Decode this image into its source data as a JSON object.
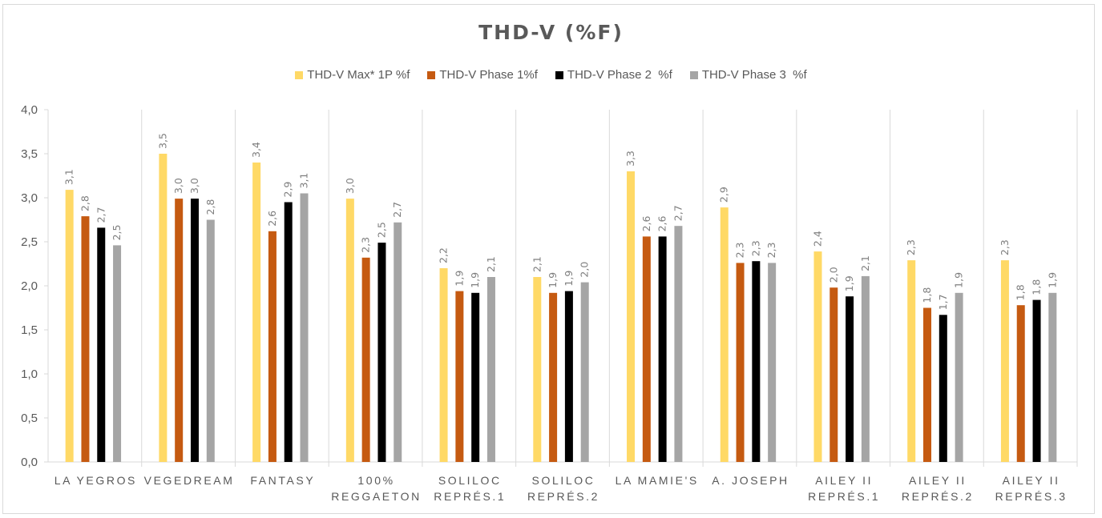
{
  "chart_data": {
    "type": "bar",
    "title": "THD-V (%F)",
    "xlabel": "",
    "ylabel": "",
    "ylim": [
      0,
      4
    ],
    "yticks": [
      "0,0",
      "0,5",
      "1,0",
      "1,5",
      "2,0",
      "2,5",
      "3,0",
      "3,5",
      "4,0"
    ],
    "ytick_values": [
      0,
      0.5,
      1,
      1.5,
      2,
      2.5,
      3,
      3.5,
      4
    ],
    "grid": false,
    "legend_position": "top",
    "categories": [
      [
        "LA YEGROS"
      ],
      [
        "VEGEDREAM"
      ],
      [
        "FANTASY"
      ],
      [
        "100%",
        "REGGAETON"
      ],
      [
        "SOLILOC",
        "REPRÉS.1"
      ],
      [
        "SOLILOC",
        "REPRÉS.2"
      ],
      [
        "LA MAMIE'S"
      ],
      [
        "A. JOSEPH"
      ],
      [
        "AILEY II",
        "REPRÉS.1"
      ],
      [
        "AILEY II",
        "REPRÉS.2"
      ],
      [
        "AILEY II",
        "REPRÉS.3"
      ]
    ],
    "series": [
      {
        "name": "THD-V Max* 1P %f",
        "color": "#FFD966",
        "values": [
          3.09,
          3.5,
          3.4,
          2.99,
          2.2,
          2.1,
          3.3,
          2.89,
          2.39,
          2.29,
          2.29
        ],
        "labels": [
          "3,1",
          "3,5",
          "3,4",
          "3,0",
          "2,2",
          "2,1",
          "3,3",
          "2,9",
          "2,4",
          "2,3",
          "2,3"
        ]
      },
      {
        "name": "THD-V Phase 1%f",
        "color": "#C55A11",
        "values": [
          2.79,
          2.99,
          2.62,
          2.32,
          1.94,
          1.92,
          2.56,
          2.26,
          1.98,
          1.75,
          1.78
        ],
        "labels": [
          "2,8",
          "3,0",
          "2,6",
          "2,3",
          "1,9",
          "1,9",
          "2,6",
          "2,3",
          "2,0",
          "1,8",
          "1,8"
        ]
      },
      {
        "name": "THD-V Phase 2  %f",
        "color": "#000000",
        "values": [
          2.66,
          2.99,
          2.95,
          2.49,
          1.92,
          1.94,
          2.56,
          2.28,
          1.88,
          1.67,
          1.84
        ],
        "labels": [
          "2,7",
          "3,0",
          "2,9",
          "2,5",
          "1,9",
          "1,9",
          "2,6",
          "2,3",
          "1,9",
          "1,7",
          "1,8"
        ]
      },
      {
        "name": "THD-V Phase 3  %f",
        "color": "#A5A5A5",
        "values": [
          2.46,
          2.75,
          3.05,
          2.72,
          2.1,
          2.04,
          2.68,
          2.26,
          2.11,
          1.92,
          1.92
        ],
        "labels": [
          "2,5",
          "2,8",
          "3,1",
          "2,7",
          "2,1",
          "2,0",
          "2,7",
          "2,3",
          "2,1",
          "1,9",
          "1,9"
        ]
      }
    ]
  },
  "colors": {
    "axis": "#d9d9d9",
    "text": "#595959",
    "data_label": "#7f7f7f"
  }
}
